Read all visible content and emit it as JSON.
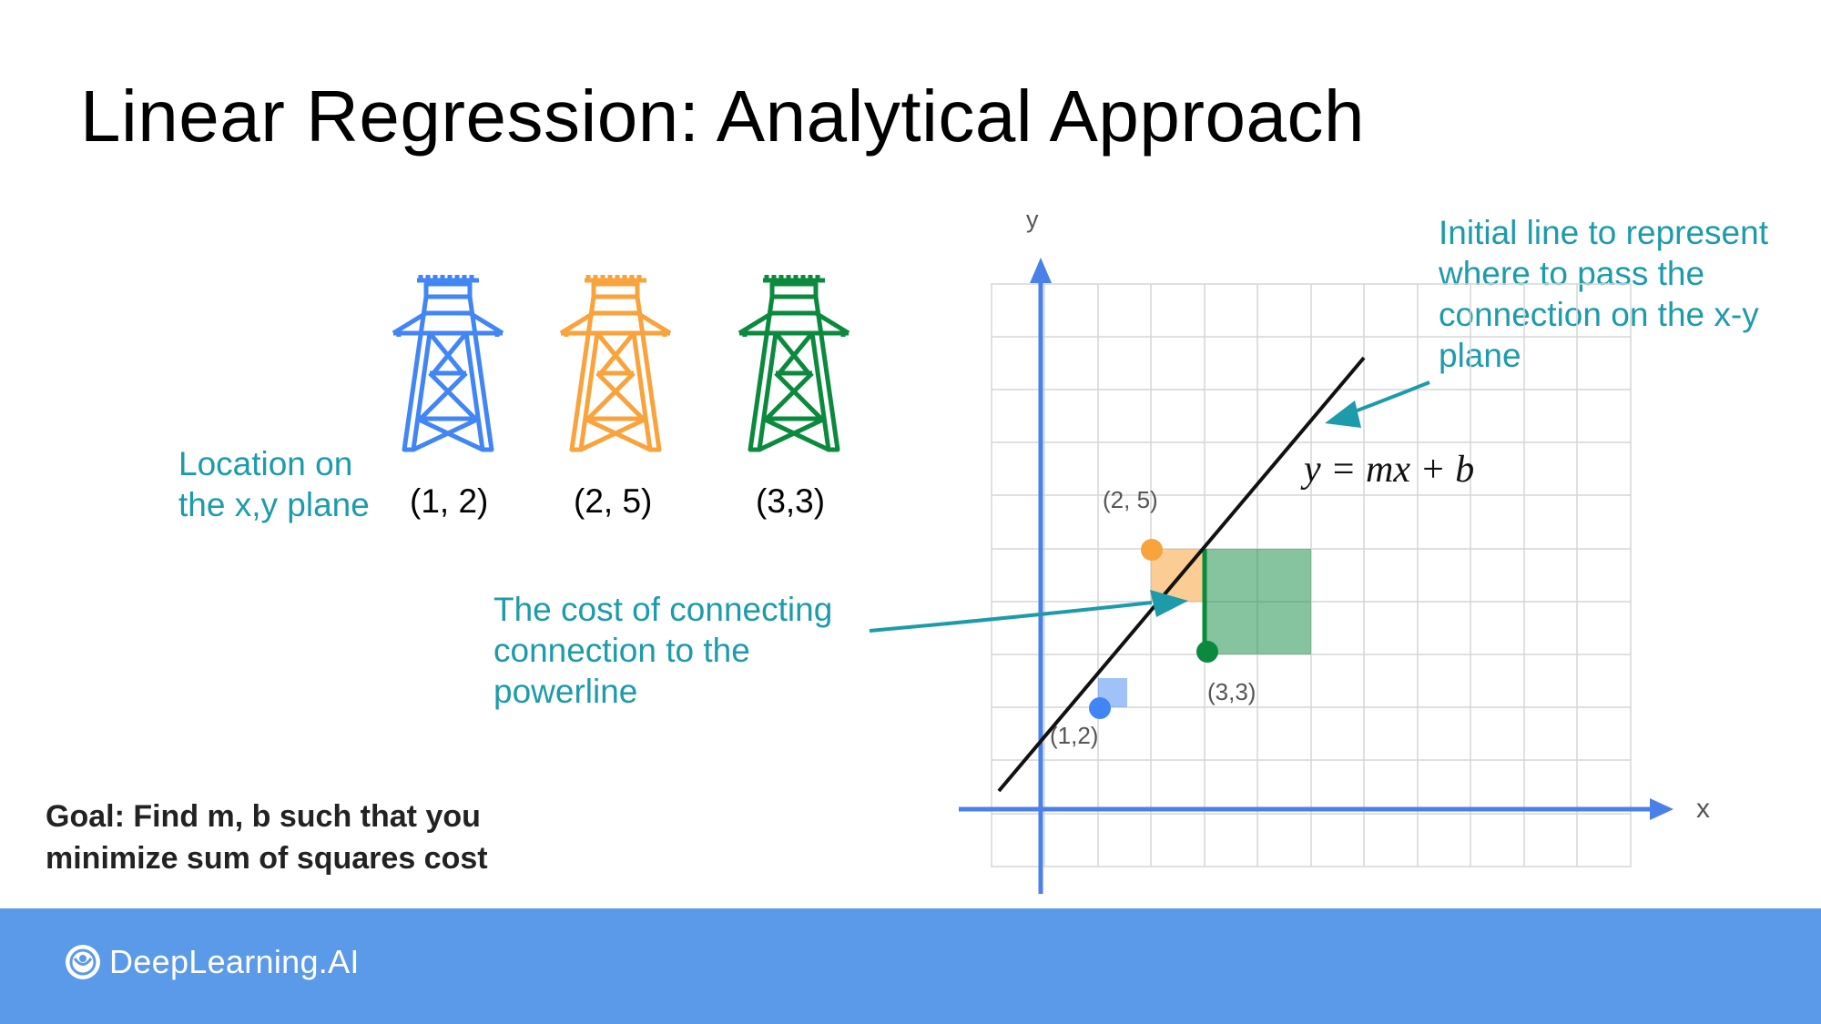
{
  "title": "Linear Regression: Analytical Approach",
  "location_label": [
    "Location on",
    "the x,y plane"
  ],
  "towers": [
    {
      "coord": "(1, 2)",
      "color": "#4285f4",
      "icon": "power-tower-icon"
    },
    {
      "coord": "(2, 5)",
      "color": "#f8a33c",
      "icon": "power-tower-icon"
    },
    {
      "coord": "(3,3)",
      "color": "#0b8a3e",
      "icon": "power-tower-icon"
    }
  ],
  "cost_label": [
    "The cost of connecting",
    "connection to the",
    "powerline"
  ],
  "initial_line_label": [
    "Initial line to represent",
    "where to pass the",
    "connection on the x-y",
    "plane"
  ],
  "goal": [
    "Goal: Find m, b such that you",
    "minimize sum of squares cost"
  ],
  "graph": {
    "x_axis_label": "x",
    "y_axis_label": "y",
    "equation": "y = mx + b",
    "points": [
      {
        "label": "(1,2)",
        "color": "#4285f4"
      },
      {
        "label": "(2, 5)",
        "color": "#f8a33c"
      },
      {
        "label": "(3,3)",
        "color": "#0b8a3e"
      }
    ]
  },
  "footer": {
    "brand": "DeepLearning.AI",
    "color": "#5b9ae8",
    "icon": "deeplearning-logo-icon"
  }
}
